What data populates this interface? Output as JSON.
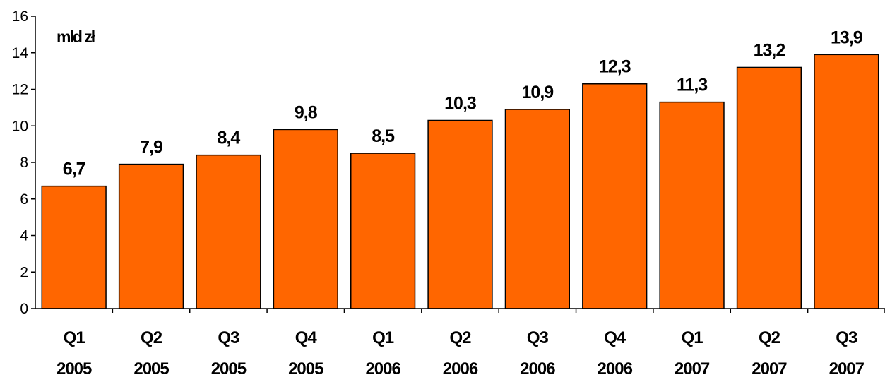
{
  "chart_data": {
    "type": "bar",
    "categories": [
      [
        "Q1",
        "2005"
      ],
      [
        "Q2",
        "2005"
      ],
      [
        "Q3",
        "2005"
      ],
      [
        "Q4",
        "2005"
      ],
      [
        "Q1",
        "2006"
      ],
      [
        "Q2",
        "2006"
      ],
      [
        "Q3",
        "2006"
      ],
      [
        "Q4",
        "2006"
      ],
      [
        "Q1",
        "2007"
      ],
      [
        "Q2",
        "2007"
      ],
      [
        "Q3",
        "2007"
      ]
    ],
    "values": [
      6.7,
      7.9,
      8.4,
      9.8,
      8.5,
      10.3,
      10.9,
      12.3,
      11.3,
      13.2,
      13.9
    ],
    "value_labels": [
      "6,7",
      "7,9",
      "8,4",
      "9,8",
      "8,5",
      "10,3",
      "10,9",
      "12,3",
      "11,3",
      "13,2",
      "13,9"
    ],
    "unit_label": "mld zł",
    "ylim": [
      0,
      16
    ],
    "yticks": [
      0,
      2,
      4,
      6,
      8,
      10,
      12,
      14,
      16
    ],
    "grid": false,
    "legend": "none",
    "bar_color": "#FF6600",
    "bar_edge_color": "#000000"
  }
}
